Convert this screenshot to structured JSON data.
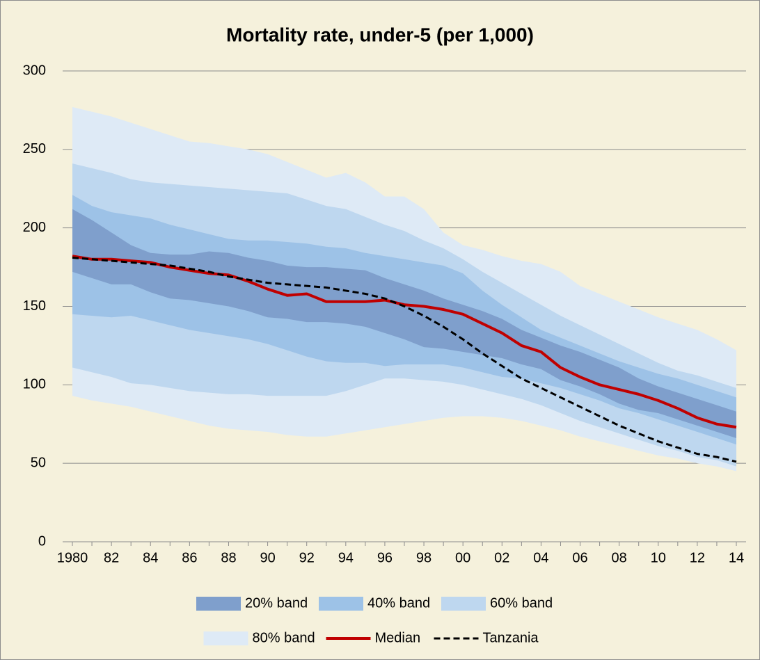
{
  "chart_data": {
    "type": "band-line",
    "title": "Mortality rate, under-5 (per 1,000)",
    "x": [
      1980,
      1981,
      1982,
      1983,
      1984,
      1985,
      1986,
      1987,
      1988,
      1989,
      1990,
      1991,
      1992,
      1993,
      1994,
      1995,
      1996,
      1997,
      1998,
      1999,
      2000,
      2001,
      2002,
      2003,
      2004,
      2005,
      2006,
      2007,
      2008,
      2009,
      2010,
      2011,
      2012,
      2013,
      2014
    ],
    "xlim": [
      1980,
      2014
    ],
    "xticks": [
      1980,
      {
        "value": 1982,
        "label": "82"
      },
      {
        "value": 1984,
        "label": "84"
      },
      {
        "value": 1986,
        "label": "86"
      },
      {
        "value": 1988,
        "label": "88"
      },
      {
        "value": 1990,
        "label": "90"
      },
      {
        "value": 1992,
        "label": "92"
      },
      {
        "value": 1994,
        "label": "94"
      },
      {
        "value": 1996,
        "label": "96"
      },
      {
        "value": 1998,
        "label": "98"
      },
      {
        "value": 2000,
        "label": "00"
      },
      {
        "value": 2002,
        "label": "02"
      },
      {
        "value": 2004,
        "label": "04"
      },
      {
        "value": 2006,
        "label": "06"
      },
      {
        "value": 2008,
        "label": "08"
      },
      {
        "value": 2010,
        "label": "10"
      },
      {
        "value": 2012,
        "label": "12"
      },
      {
        "value": 2014,
        "label": "14"
      }
    ],
    "ylim": [
      0,
      300
    ],
    "yticks": [
      0,
      50,
      100,
      150,
      200,
      250,
      300
    ],
    "grid": true,
    "legend": "bottom",
    "series": [
      {
        "name": "20% band",
        "color": "#7f9fcc",
        "high": [
          212,
          205,
          197,
          189,
          184,
          183,
          183,
          185,
          184,
          181,
          179,
          176,
          175,
          175,
          174,
          173,
          168,
          164,
          160,
          155,
          151,
          147,
          142,
          135,
          130,
          125,
          121,
          116,
          111,
          104,
          99,
          95,
          91,
          87,
          83
        ],
        "low": [
          172,
          168,
          164,
          164,
          159,
          155,
          154,
          152,
          150,
          147,
          143,
          142,
          140,
          140,
          139,
          137,
          133,
          129,
          124,
          123,
          121,
          119,
          117,
          113,
          110,
          103,
          99,
          94,
          88,
          84,
          82,
          78,
          74,
          70,
          66
        ]
      },
      {
        "name": "40% band",
        "color": "#9dc2e7",
        "high": [
          221,
          214,
          210,
          208,
          206,
          202,
          199,
          196,
          193,
          192,
          192,
          191,
          190,
          188,
          187,
          184,
          182,
          180,
          178,
          176,
          171,
          160,
          151,
          143,
          135,
          130,
          125,
          120,
          115,
          111,
          107,
          104,
          100,
          96,
          92
        ],
        "low": [
          145,
          144,
          143,
          144,
          141,
          138,
          135,
          133,
          131,
          129,
          126,
          122,
          118,
          115,
          114,
          114,
          112,
          113,
          113,
          113,
          111,
          108,
          105,
          104,
          101,
          98,
          94,
          90,
          85,
          82,
          78,
          74,
          70,
          66,
          62
        ]
      },
      {
        "name": "60% band",
        "color": "#bed7ef",
        "high": [
          241,
          238,
          235,
          231,
          229,
          228,
          227,
          226,
          225,
          224,
          223,
          222,
          218,
          214,
          212,
          207,
          202,
          198,
          192,
          187,
          180,
          172,
          165,
          158,
          151,
          144,
          138,
          132,
          126,
          120,
          114,
          109,
          106,
          102,
          98
        ],
        "low": [
          111,
          108,
          105,
          101,
          100,
          98,
          96,
          95,
          94,
          94,
          93,
          93,
          93,
          93,
          96,
          100,
          104,
          104,
          103,
          102,
          100,
          97,
          94,
          91,
          87,
          82,
          77,
          73,
          69,
          65,
          61,
          58,
          54,
          52,
          48
        ]
      },
      {
        "name": "80% band",
        "color": "#deeaf6",
        "high": [
          277,
          274,
          271,
          267,
          263,
          259,
          255,
          254,
          252,
          250,
          247,
          242,
          237,
          232,
          235,
          229,
          220,
          220,
          212,
          197,
          189,
          186,
          182,
          179,
          177,
          172,
          163,
          158,
          153,
          148,
          143,
          139,
          135,
          129,
          122
        ],
        "low": [
          93,
          90,
          88,
          86,
          83,
          80,
          77,
          74,
          72,
          71,
          70,
          68,
          67,
          67,
          69,
          71,
          73,
          75,
          77,
          79,
          80,
          80,
          79,
          77,
          74,
          71,
          67,
          64,
          61,
          58,
          55,
          53,
          50,
          48,
          45
        ]
      },
      {
        "name": "Median",
        "color": "#c00000",
        "style": "solid",
        "values": [
          182,
          180,
          180,
          179,
          178,
          175,
          173,
          171,
          170,
          166,
          161,
          157,
          158,
          153,
          153,
          153,
          154,
          151,
          150,
          148,
          145,
          139,
          133,
          125,
          121,
          111,
          105,
          100,
          97,
          94,
          90,
          85,
          79,
          75,
          73
        ]
      },
      {
        "name": "Tanzania",
        "color": "#000000",
        "style": "dashed",
        "values": [
          181,
          180,
          179,
          178,
          177,
          176,
          174,
          172,
          169,
          167,
          165,
          164,
          163,
          162,
          160,
          158,
          155,
          150,
          144,
          137,
          129,
          120,
          112,
          104,
          98,
          92,
          86,
          80,
          74,
          69,
          64,
          60,
          56,
          54,
          51
        ]
      }
    ]
  }
}
